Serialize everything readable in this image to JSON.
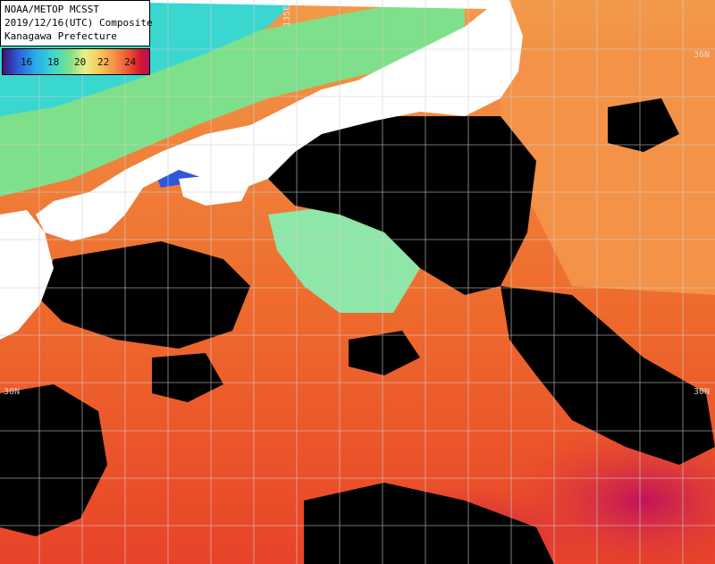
{
  "caption": {
    "line1": "NOAA/METOP MCSST",
    "line2": "2019/12/16(UTC) Composite",
    "line3": "Kanagawa Prefecture"
  },
  "legend": {
    "ticks": [
      "16",
      "18",
      "20",
      "22",
      "24"
    ]
  },
  "grid_labels": {
    "lon_135e": "135E",
    "lat_36n_right": "36N",
    "lat_30n_left": "30N",
    "lat_30n_right": "30N"
  },
  "colors": {
    "land": "#ffffff",
    "cloud": "#000000",
    "warm_sea": "#f08a3a",
    "hot_sea": "#e83a1f",
    "cool_sea": "#6fd8c8",
    "cold_sea": "#2f5fd8",
    "grid": "#cfcfcf"
  }
}
